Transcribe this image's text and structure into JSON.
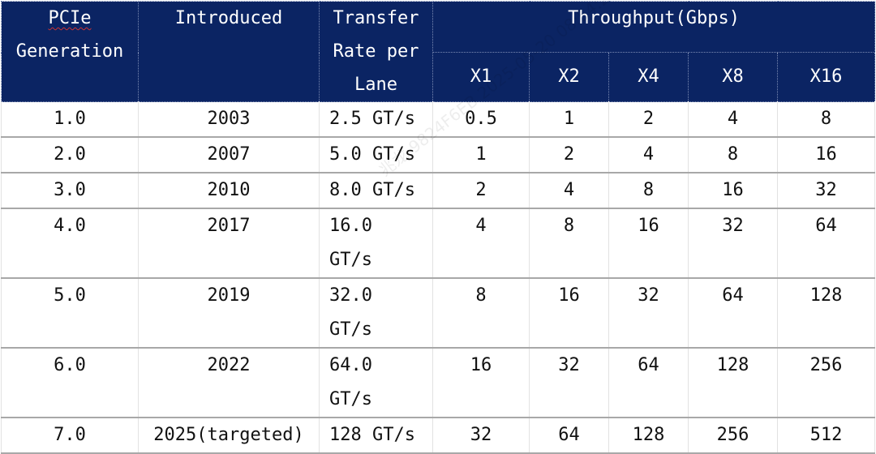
{
  "table": {
    "headers": {
      "generation": "PCIe Generation",
      "generation_line1": "PCIe",
      "generation_line2": "Generation",
      "introduced": "Introduced",
      "rate_line1": "Transfer",
      "rate_line2": "Rate per",
      "rate_line3": "Lane",
      "throughput": "Throughput(Gbps)",
      "lanes": [
        "X1",
        "X2",
        "X4",
        "X8",
        "X16"
      ]
    },
    "rows": [
      {
        "gen": "1.0",
        "year": "2003",
        "rate": "2.5 GT/s",
        "x1": "0.5",
        "x2": "1",
        "x4": "2",
        "x8": "4",
        "x16": "8"
      },
      {
        "gen": "2.0",
        "year": "2007",
        "rate": "5.0 GT/s",
        "x1": "1",
        "x2": "2",
        "x4": "4",
        "x8": "8",
        "x16": "16"
      },
      {
        "gen": "3.0",
        "year": "2010",
        "rate": "8.0 GT/s",
        "x1": "2",
        "x2": "4",
        "x4": "8",
        "x8": "16",
        "x16": "32"
      },
      {
        "gen": "4.0",
        "year": "2017",
        "rate": "16.0 GT/s",
        "x1": "4",
        "x2": "8",
        "x4": "16",
        "x8": "32",
        "x16": "64"
      },
      {
        "gen": "5.0",
        "year": "2019",
        "rate": "32.0 GT/s",
        "x1": "8",
        "x2": "16",
        "x4": "32",
        "x8": "64",
        "x16": "128"
      },
      {
        "gen": "6.0",
        "year": "2022",
        "rate": "64.0 GT/s",
        "x1": "16",
        "x2": "32",
        "x4": "64",
        "x8": "128",
        "x16": "256"
      },
      {
        "gen": "7.0",
        "year": "2025(targeted)",
        "rate": "128 GT/s",
        "x1": "32",
        "x2": "64",
        "x4": "128",
        "x8": "256",
        "x16": "512"
      }
    ]
  },
  "watermark": "兆龙 9824F6EB 2025-05-20 08:54:25",
  "colors": {
    "header_bg": "#0b2463",
    "header_text": "#ffffff"
  }
}
